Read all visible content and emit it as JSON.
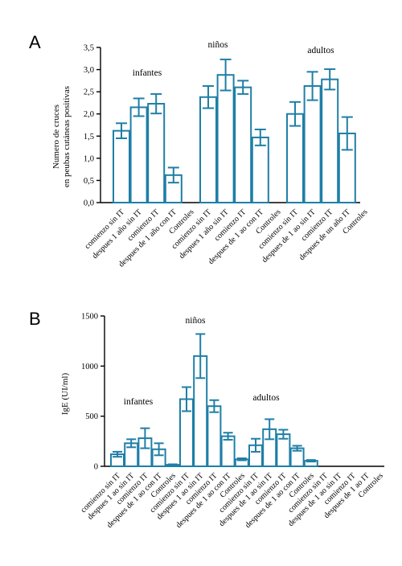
{
  "chart_data": [
    {
      "type": "bar",
      "panel": "A",
      "ylabel": [
        "Numero de cruces",
        "en peubas cutáneas positivas"
      ],
      "ylim": [
        0,
        3.5
      ],
      "yticks": [
        "0,0",
        "0,5",
        "1,0",
        "1,5",
        "2,0",
        "2,5",
        "3,0",
        "3,5"
      ],
      "group_labels": [
        "infantes",
        "niños",
        "adultos"
      ],
      "categories": [
        "comienzo sin IT",
        "despues 1 año sin IT",
        "comienzo IT",
        "despues de 1 año con IT",
        "Controles",
        "comienzo sin IT",
        "despues 1 año sin IT",
        "comienzo IT",
        "despues de 1 ao con IT",
        "Controles",
        "comienzo sin IT",
        "despues de 1 ao sin IT",
        "comienzo IT",
        "despues de un año IT",
        "Controles"
      ],
      "values": [
        1.62,
        2.15,
        2.23,
        0.62,
        0,
        2.38,
        2.88,
        2.6,
        1.47,
        0,
        2.0,
        2.63,
        2.78,
        1.56,
        0
      ],
      "errors": [
        0.17,
        0.2,
        0.22,
        0.17,
        0,
        0.25,
        0.35,
        0.15,
        0.18,
        0,
        0.27,
        0.32,
        0.23,
        0.37,
        0
      ]
    },
    {
      "type": "bar",
      "panel": "B",
      "ylabel": "IgE (UI/ml)",
      "ylim": [
        0,
        1500
      ],
      "yticks": [
        "0",
        "500",
        "1000",
        "1500"
      ],
      "group_labels": [
        "infantes",
        "niños",
        "adultos"
      ],
      "categories": [
        "comienzo sin IT",
        "despues 1 ao sin IT",
        "comienzo IT",
        "despues de 1 ao con IT",
        "Controles",
        "comienzo sin IT",
        "despues 1 ao sin IT",
        "comienzo IT",
        "despues de 1 ao con IT",
        "Controles",
        "comienzo sin IT",
        "despues de 1 ao sin IT",
        "comienzo IT",
        "despues de 1 ao con IT",
        "Controles",
        "comienzo sin IT",
        "despues de 1 ao sin IT",
        "comienzo IT",
        "despues de 1 ao IT",
        "Controles"
      ],
      "values": [
        120,
        230,
        280,
        170,
        15,
        670,
        1100,
        600,
        300,
        70,
        210,
        370,
        320,
        180,
        55,
        0,
        0,
        0,
        0,
        0
      ],
      "errors": [
        25,
        40,
        100,
        60,
        5,
        120,
        220,
        60,
        35,
        10,
        65,
        100,
        45,
        25,
        8,
        0,
        0,
        0,
        0,
        0
      ]
    }
  ]
}
